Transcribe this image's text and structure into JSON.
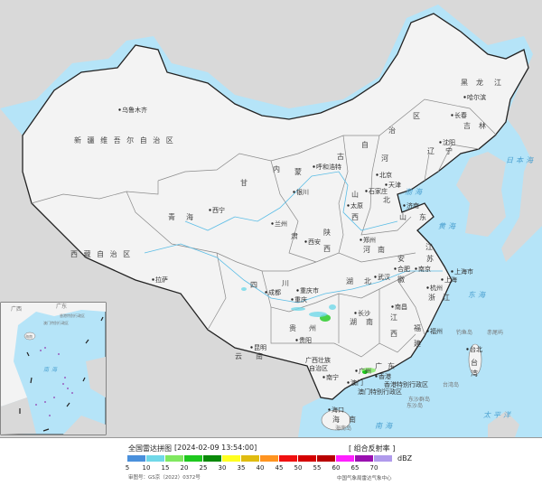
{
  "map": {
    "colors": {
      "sea": "#b5e4f8",
      "china_land": "#f3f3f3",
      "neighbor_land": "#d9d9d9",
      "border": "#222222",
      "province_border": "#888888",
      "river": "#5bbde6"
    },
    "labels": [
      "新 疆 维 吾 尔 自 治 区",
      "乌鲁木齐",
      "西 藏 自 治 区",
      "拉萨",
      "青",
      "海",
      "西宁",
      "甘",
      "肃",
      "兰州",
      "内",
      "蒙",
      "古",
      "自",
      "治",
      "区",
      "呼和浩特",
      "银川",
      "陕",
      "西",
      "西安",
      "山",
      "西",
      "太原",
      "河",
      "北",
      "北京",
      "天津",
      "石家庄",
      "辽",
      "宁",
      "沈阳",
      "吉",
      "林",
      "长春",
      "黑",
      "龙",
      "江",
      "哈尔滨",
      "山",
      "东",
      "济南",
      "河",
      "南",
      "郑州",
      "江",
      "苏",
      "南京",
      "上海市",
      "上海",
      "安",
      "徽",
      "合肥",
      "湖",
      "北",
      "武汉",
      "浙",
      "江",
      "杭州",
      "江",
      "西",
      "南昌",
      "福",
      "建",
      "福州",
      "台",
      "湾",
      "台北",
      "湖",
      "南",
      "长沙",
      "四",
      "川",
      "成都",
      "重庆市",
      "重庆",
      "贵",
      "州",
      "贵阳",
      "云",
      "南",
      "昆明",
      "广西壮族",
      "自治区",
      "南宁",
      "广",
      "东",
      "广州",
      "香港",
      "澳门",
      "香港特别行政区",
      "澳门特别行政区",
      "海口",
      "海",
      "南",
      "海南岛",
      "台湾岛",
      "东沙群岛",
      "东沙岛",
      "钓鱼岛",
      "赤尾屿"
    ],
    "seas": [
      "渤海",
      "黄海",
      "东海",
      "日本海",
      "太平洋",
      "南海"
    ],
    "inset": {
      "labels": [
        "广西",
        "广东",
        "香港特别行政区",
        "澳门特别行政区",
        "海南",
        "南海"
      ]
    }
  },
  "legend": {
    "title": "全国雷达拼图",
    "timestamp": "[2024-02-09 13:54:00]",
    "product": "[ 组合反射率 ]",
    "unit": "dBZ",
    "ticks": [
      "5",
      "10",
      "15",
      "20",
      "25",
      "30",
      "35",
      "40",
      "45",
      "50",
      "55",
      "60",
      "65",
      "70"
    ],
    "colors": [
      "#4a90dc",
      "#70d8e8",
      "#80e860",
      "#1ec81e",
      "#0a8a0a",
      "#ffff20",
      "#e0bc10",
      "#ff9420",
      "#f01010",
      "#d40000",
      "#b80000",
      "#ff20ff",
      "#9a10b0",
      "#b09aec"
    ],
    "approval": "审图号：GS京（2022）0372号",
    "source": "中国气象局雷达气象中心"
  }
}
